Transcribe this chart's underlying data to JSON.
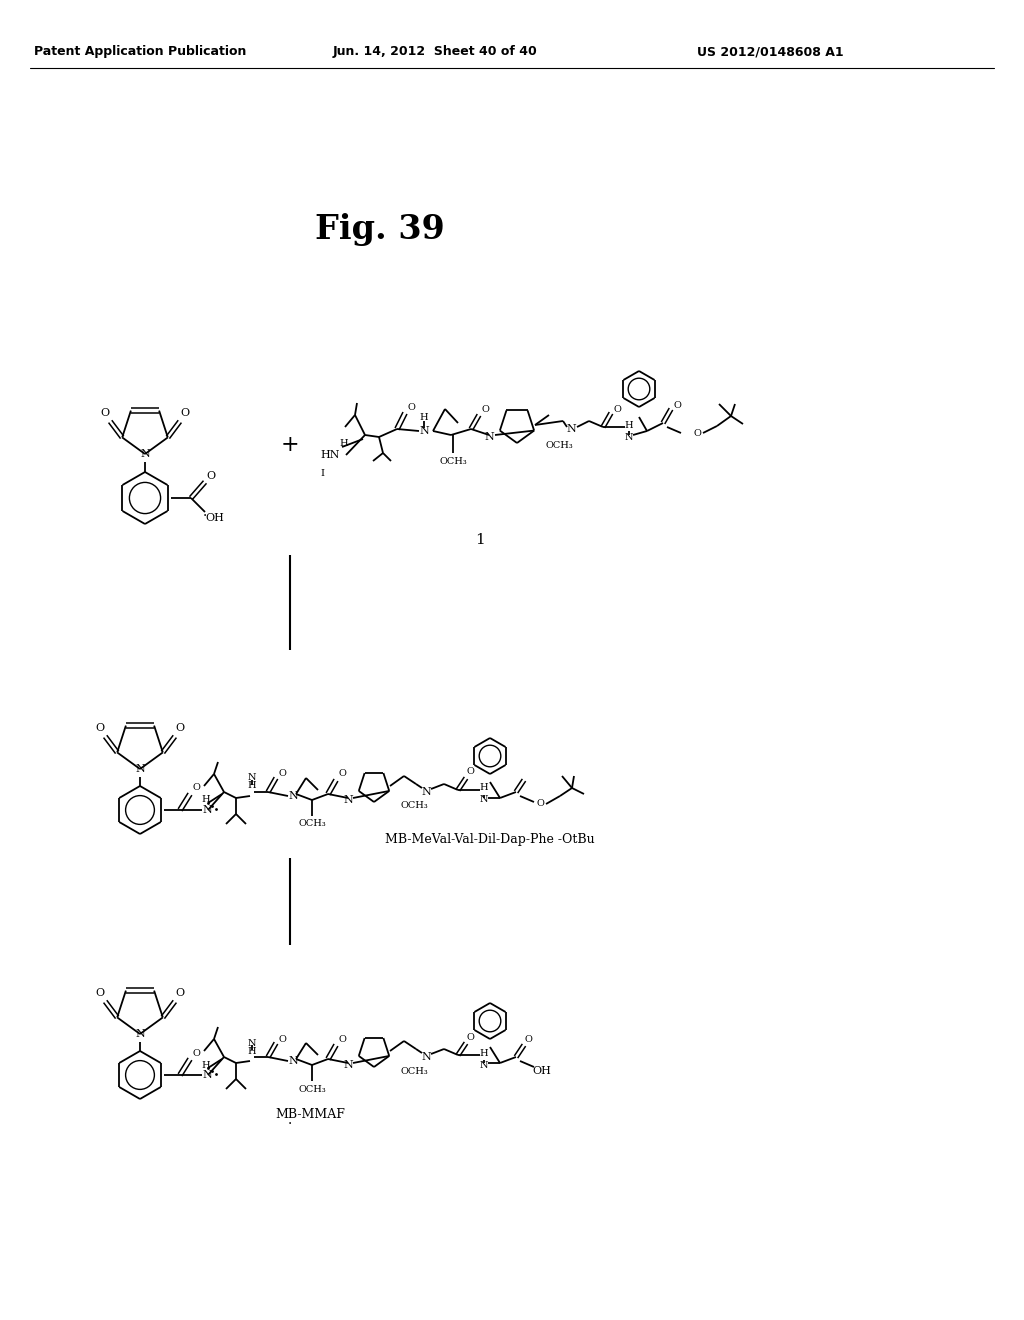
{
  "header_left": "Patent Application Publication",
  "header_center": "Jun. 14, 2012  Sheet 40 of 40",
  "header_right": "US 2012/0148608 A1",
  "fig_label": "Fig. 39",
  "label1": "1",
  "label2": "MB-MeVal-Val-Dil-Dap-Phe -OtBu",
  "label3": "MB-MMAF",
  "bg_color": "#ffffff",
  "text_color": "#000000",
  "line_color": "#000000",
  "header_fontsize": 10,
  "fig_label_fontsize": 22
}
